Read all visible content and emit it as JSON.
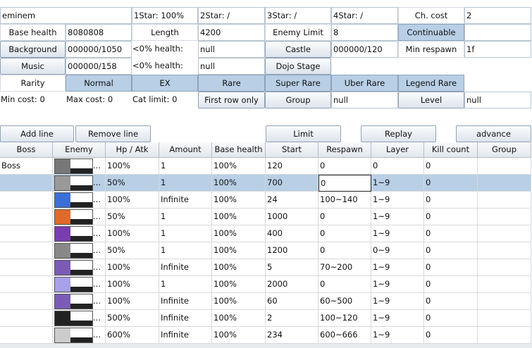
{
  "form": {
    "rows": [
      [
        "eminem",
        "1Star: 100%",
        "2Star: /",
        "3Star: /",
        "4Star: /",
        "Ch. cost",
        "2"
      ],
      [
        "Base health",
        "8080808",
        "Length",
        "4200",
        "Enemy Limit",
        "8",
        "Continuable"
      ],
      [
        "Background",
        "000000/1050",
        "<0% health:",
        "null",
        "Castle",
        "000000/120",
        "Min respawn",
        "1f"
      ],
      [
        "Music",
        "000000/158",
        "<0% health:",
        "null",
        "Dojo Stage"
      ],
      [
        "Rarity",
        "Normal",
        "EX",
        "Rare",
        "Super Rare",
        "Uber Rare",
        "Legend Rare"
      ],
      [
        "Min cost: 0",
        "Max cost: 0",
        "Cat limit: 0",
        "First row only",
        "Group",
        "null",
        "Level",
        "null"
      ]
    ]
  },
  "toolbar": [
    "Add line",
    "Remove line",
    "Limit",
    "Replay",
    "advance"
  ],
  "table": {
    "columns": [
      "Boss",
      "Enemy",
      "Hp / Atk",
      "Amount",
      "Base health",
      "Start",
      "Respawn",
      "Layer",
      "Kill count",
      "Group"
    ],
    "selected_row": 1,
    "rows": [
      {
        "boss": "Boss",
        "enemy": "...",
        "hp_atk": "100%",
        "amount": "1",
        "base_health": "100%",
        "start": "120",
        "respawn": "0",
        "layer": "0",
        "kill_count": "0"
      },
      {
        "enemy": "...",
        "hp_atk": "50%",
        "amount": "1",
        "base_health": "100%",
        "start": "700",
        "respawn": "0",
        "layer": "1~9",
        "kill_count": "0"
      },
      {
        "enemy": "...",
        "hp_atk": "100%",
        "amount": "Infinite",
        "base_health": "100%",
        "start": "24",
        "respawn": "100~140",
        "layer": "1~9",
        "kill_count": "0"
      },
      {
        "enemy": "...",
        "hp_atk": "50%",
        "amount": "1",
        "base_health": "100%",
        "start": "1000",
        "respawn": "0",
        "layer": "1~9",
        "kill_count": "0"
      },
      {
        "enemy": "...",
        "hp_atk": "100%",
        "amount": "1",
        "base_health": "100%",
        "start": "400",
        "respawn": "0",
        "layer": "1~9",
        "kill_count": "0"
      },
      {
        "enemy": "...",
        "hp_atk": "50%",
        "amount": "1",
        "base_health": "100%",
        "start": "1200",
        "respawn": "0",
        "layer": "0~9",
        "kill_count": "0"
      },
      {
        "enemy": "...",
        "hp_atk": "100%",
        "amount": "Infinite",
        "base_health": "100%",
        "start": "5",
        "respawn": "70~200",
        "layer": "1~9",
        "kill_count": "0"
      },
      {
        "enemy": "...",
        "hp_atk": "100%",
        "amount": "1",
        "base_health": "100%",
        "start": "2000",
        "respawn": "0",
        "layer": "1~9",
        "kill_count": "0"
      },
      {
        "enemy": "...",
        "hp_atk": "100%",
        "amount": "Infinite",
        "base_health": "100%",
        "start": "60",
        "respawn": "60~500",
        "layer": "1~9",
        "kill_count": "0"
      },
      {
        "enemy": "...",
        "hp_atk": "500%",
        "amount": "Infinite",
        "base_health": "100%",
        "start": "2",
        "respawn": "100~120",
        "layer": "1~9",
        "kill_count": "0"
      },
      {
        "enemy": "...",
        "hp_atk": "600%",
        "amount": "Infinite",
        "base_health": "100%",
        "start": "234",
        "respawn": "600~666",
        "layer": "1~9",
        "kill_count": "0"
      }
    ]
  }
}
